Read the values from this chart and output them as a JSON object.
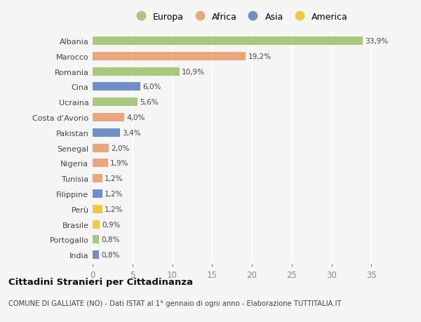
{
  "countries": [
    "Albania",
    "Marocco",
    "Romania",
    "Cina",
    "Ucraina",
    "Costa d'Avorio",
    "Pakistan",
    "Senegal",
    "Nigeria",
    "Tunisia",
    "Filippine",
    "Perù",
    "Brasile",
    "Portogallo",
    "India"
  ],
  "values": [
    33.9,
    19.2,
    10.9,
    6.0,
    5.6,
    4.0,
    3.4,
    2.0,
    1.9,
    1.2,
    1.2,
    1.2,
    0.9,
    0.8,
    0.8
  ],
  "labels": [
    "33,9%",
    "19,2%",
    "10,9%",
    "6,0%",
    "5,6%",
    "4,0%",
    "3,4%",
    "2,0%",
    "1,9%",
    "1,2%",
    "1,2%",
    "1,2%",
    "0,9%",
    "0,8%",
    "0,8%"
  ],
  "continents": [
    "Europa",
    "Africa",
    "Europa",
    "Asia",
    "Europa",
    "Africa",
    "Asia",
    "Africa",
    "Africa",
    "Africa",
    "Asia",
    "America",
    "America",
    "Europa",
    "Asia"
  ],
  "continent_colors": {
    "Europa": "#a8c87e",
    "Africa": "#e8a87c",
    "Asia": "#6e8fc9",
    "America": "#f0c842"
  },
  "legend_order": [
    "Europa",
    "Africa",
    "Asia",
    "America"
  ],
  "title": "Cittadini Stranieri per Cittadinanza",
  "subtitle": "COMUNE DI GALLIATE (NO) - Dati ISTAT al 1° gennaio di ogni anno - Elaborazione TUTTITALIA.IT",
  "xlim": [
    0,
    37
  ],
  "xticks": [
    0,
    5,
    10,
    15,
    20,
    25,
    30,
    35
  ],
  "bg_color": "#f5f5f5",
  "grid_color": "#ffffff",
  "bar_height": 0.55
}
